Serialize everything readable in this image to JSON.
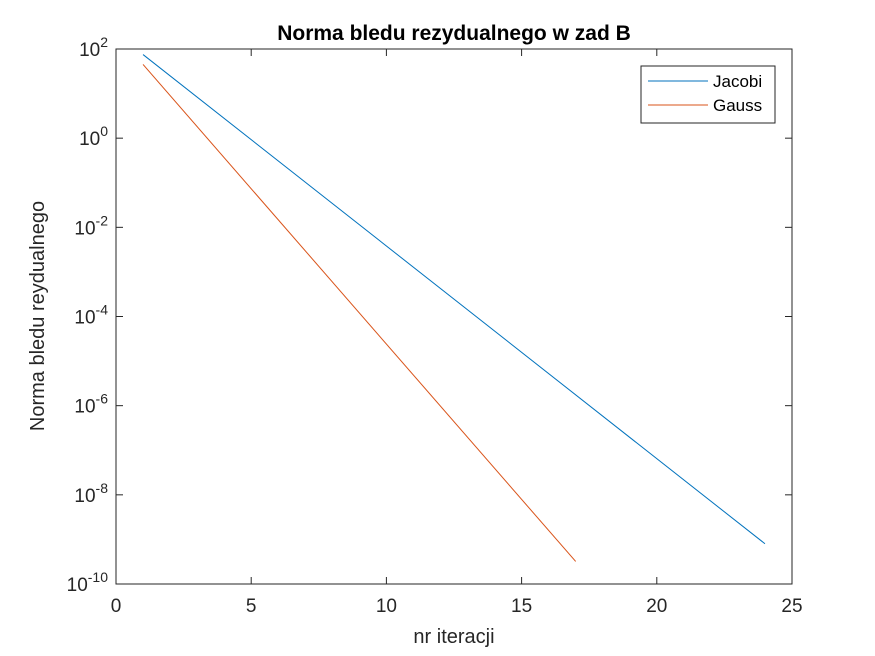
{
  "chart_data": {
    "type": "line",
    "title": "Norma bledu rezydualnego w zad B",
    "xlabel": "nr iteracji",
    "ylabel": "Norma bledu reydualnego",
    "xlim": [
      0,
      25
    ],
    "ylim": [
      1e-10,
      100
    ],
    "yscale": "log",
    "grid": false,
    "legend_position": "top-right",
    "x_ticks": [
      0,
      5,
      10,
      15,
      20,
      25
    ],
    "y_ticks": [
      {
        "value": 100.0,
        "base": "10",
        "exp": "2"
      },
      {
        "value": 1.0,
        "base": "10",
        "exp": "0"
      },
      {
        "value": 0.01,
        "base": "10",
        "exp": "-2"
      },
      {
        "value": 0.0001,
        "base": "10",
        "exp": "-4"
      },
      {
        "value": 1e-06,
        "base": "10",
        "exp": "-6"
      },
      {
        "value": 1e-08,
        "base": "10",
        "exp": "-8"
      },
      {
        "value": 1e-10,
        "base": "10",
        "exp": "-10"
      }
    ],
    "series": [
      {
        "name": "Jacobi",
        "color": "#0072BD",
        "x": [
          1,
          24
        ],
        "y": [
          75,
          8e-10
        ]
      },
      {
        "name": "Gauss",
        "color": "#D95319",
        "x": [
          1,
          17
        ],
        "y": [
          45,
          3.2e-10
        ]
      }
    ]
  }
}
